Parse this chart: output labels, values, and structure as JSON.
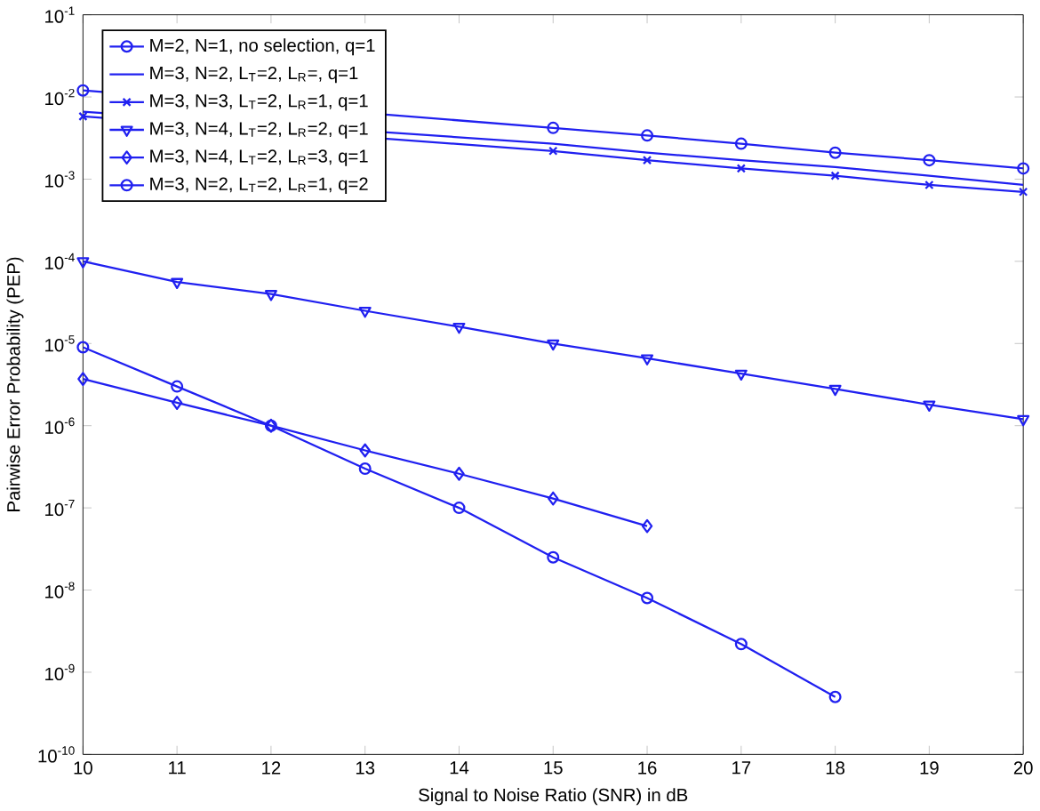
{
  "chart_data": {
    "type": "line",
    "xlabel": "Signal to Noise Ratio (SNR) in dB",
    "ylabel": "Pairwise Error Probability (PEP)",
    "x": [
      10,
      11,
      12,
      13,
      14,
      15,
      16,
      17,
      18,
      19,
      20
    ],
    "series": [
      {
        "name": "M=2, N=1, no selection, q=1",
        "color": "#2020f0",
        "marker": "circle",
        "values": [
          0.012,
          null,
          null,
          null,
          null,
          0.0042,
          0.0034,
          0.0027,
          0.0021,
          0.0017,
          0.00135
        ]
      },
      {
        "name": "M=3, N=2, L$_{T}$=2, L$_{R}$=, q=1",
        "color": "#2020f0",
        "marker": "none",
        "values": [
          0.0066,
          null,
          null,
          null,
          null,
          0.0027,
          0.0021,
          0.0017,
          0.0014,
          0.0011,
          0.00085
        ]
      },
      {
        "name": "M=3, N=3, L$_{T}$=2, L$_{R}$=1, q=1",
        "color": "#2020f0",
        "marker": "cross",
        "values": [
          0.0058,
          null,
          null,
          null,
          null,
          0.0022,
          0.0017,
          0.00135,
          0.0011,
          0.00085,
          0.0007
        ]
      },
      {
        "name": "M=3, N=4, L$_{T}$=2, L$_{R}$=2, q=1",
        "color": "#2020f0",
        "marker": "triangle",
        "values": [
          0.0001,
          5.6e-05,
          4e-05,
          2.5e-05,
          1.6e-05,
          1e-05,
          6.6e-06,
          4.3e-06,
          2.8e-06,
          1.8e-06,
          1.2e-06
        ]
      },
      {
        "name": "M=3, N=4, L$_{T}$=2, L$_{R}$=3, q=1",
        "color": "#2020f0",
        "marker": "diamond",
        "values": [
          3.7e-06,
          1.9e-06,
          1e-06,
          5e-07,
          2.6e-07,
          1.3e-07,
          6e-08,
          null,
          null,
          null,
          null
        ]
      },
      {
        "name": "M=3, N=2, L$_{T}$=2, L$_{R}$=1, q=2",
        "color": "#2020f0",
        "marker": "circle",
        "values": [
          9e-06,
          3e-06,
          1e-06,
          3e-07,
          1e-07,
          2.5e-08,
          8e-09,
          2.2e-09,
          5e-10,
          null,
          null
        ]
      }
    ],
    "xlim": [
      10,
      20
    ],
    "xticks": [
      10,
      11,
      12,
      13,
      14,
      15,
      16,
      17,
      18,
      19,
      20
    ],
    "ylim": [
      1e-10,
      0.1
    ],
    "yticks": [
      {
        "value": 1e-10,
        "label": "10$^{-10}$"
      },
      {
        "value": 1e-09,
        "label": "10$^{-9}$"
      },
      {
        "value": 1e-08,
        "label": "10$^{-8}$"
      },
      {
        "value": 1e-07,
        "label": "10$^{-7}$"
      },
      {
        "value": 1e-06,
        "label": "10$^{-6}$"
      },
      {
        "value": 1e-05,
        "label": "10$^{-5}$"
      },
      {
        "value": 0.0001,
        "label": "10$^{-4}$"
      },
      {
        "value": 0.001,
        "label": "10$^{-3}$"
      },
      {
        "value": 0.01,
        "label": "10$^{-2}$"
      },
      {
        "value": 0.1,
        "label": "10$^{-1}$"
      }
    ],
    "log": "y",
    "grid": false,
    "legend": "top left",
    "line_style": "solid"
  }
}
